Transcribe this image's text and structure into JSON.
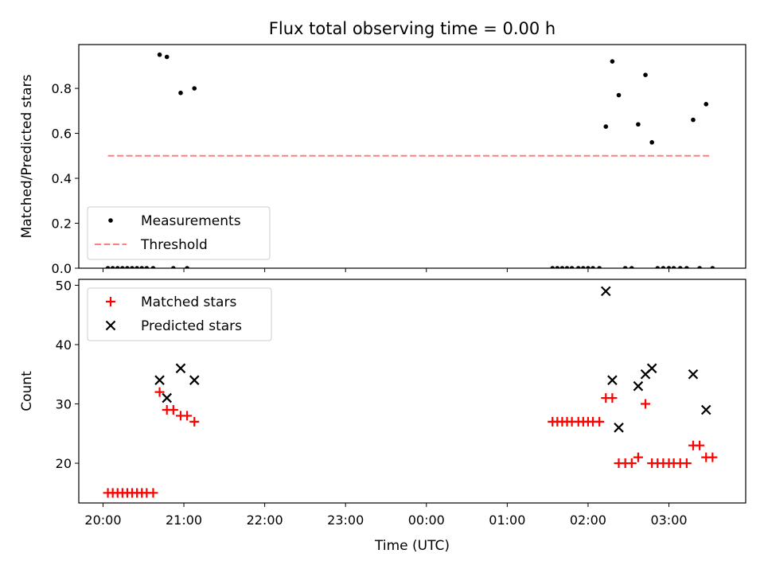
{
  "title": "Flux total observing time = 0.00 h",
  "chart_data": [
    {
      "type": "scatter",
      "ylabel": "Matched/Predicted stars",
      "xlim": [
        -0.3,
        7.95
      ],
      "ylim": [
        0,
        0.995
      ],
      "yticks": [
        0.0,
        0.2,
        0.4,
        0.6,
        0.8
      ],
      "ytick_labels": [
        "0.0",
        "0.2",
        "0.4",
        "0.6",
        "0.8"
      ],
      "legend": {
        "placement": "lower-left",
        "entries": [
          {
            "label": "Measurements",
            "marker": "dot",
            "color": "#000000"
          },
          {
            "label": "Threshold",
            "marker": "dashed-line",
            "color": "#ff7f7f"
          }
        ]
      },
      "threshold": {
        "y": 0.5,
        "x_range": [
          0.06,
          7.52
        ],
        "color": "#ff7f7f"
      },
      "series": [
        {
          "name": "Measurements",
          "color": "#000000",
          "points": [
            [
              0.06,
              0
            ],
            [
              0.12,
              0
            ],
            [
              0.18,
              0
            ],
            [
              0.24,
              0
            ],
            [
              0.3,
              0
            ],
            [
              0.36,
              0
            ],
            [
              0.42,
              0
            ],
            [
              0.48,
              0
            ],
            [
              0.54,
              0
            ],
            [
              0.62,
              0
            ],
            [
              0.7,
              0.95
            ],
            [
              0.79,
              0.94
            ],
            [
              0.87,
              0
            ],
            [
              0.96,
              0.78
            ],
            [
              1.04,
              0
            ],
            [
              1.13,
              0.8
            ],
            [
              5.56,
              0
            ],
            [
              5.62,
              0
            ],
            [
              5.68,
              0
            ],
            [
              5.74,
              0
            ],
            [
              5.8,
              0
            ],
            [
              5.88,
              0
            ],
            [
              5.94,
              0
            ],
            [
              6.0,
              0
            ],
            [
              6.06,
              0
            ],
            [
              6.14,
              0
            ],
            [
              6.22,
              0.63
            ],
            [
              6.3,
              0.92
            ],
            [
              6.38,
              0.77
            ],
            [
              6.46,
              0
            ],
            [
              6.54,
              0
            ],
            [
              6.62,
              0.64
            ],
            [
              6.71,
              0.86
            ],
            [
              6.79,
              0.56
            ],
            [
              6.86,
              0
            ],
            [
              6.93,
              0
            ],
            [
              7.0,
              0
            ],
            [
              7.06,
              0
            ],
            [
              7.14,
              0
            ],
            [
              7.22,
              0
            ],
            [
              7.3,
              0.66
            ],
            [
              7.38,
              0
            ],
            [
              7.46,
              0.73
            ],
            [
              7.54,
              0
            ]
          ]
        }
      ]
    },
    {
      "type": "scatter",
      "xlabel": "Time (UTC)",
      "ylabel": "Count",
      "xlim": [
        -0.3,
        7.95
      ],
      "ylim": [
        13.3,
        51.0
      ],
      "yticks": [
        20,
        30,
        40,
        50
      ],
      "ytick_labels": [
        "20",
        "30",
        "40",
        "50"
      ],
      "xticks": [
        0,
        1,
        2,
        3,
        4,
        5,
        6,
        7
      ],
      "xtick_labels": [
        "20:00",
        "21:00",
        "22:00",
        "23:00",
        "00:00",
        "01:00",
        "02:00",
        "03:00"
      ],
      "legend": {
        "placement": "upper-left",
        "entries": [
          {
            "label": "Matched stars",
            "marker": "plus",
            "color": "#ff0000"
          },
          {
            "label": "Predicted stars",
            "marker": "x",
            "color": "#000000"
          }
        ]
      },
      "series": [
        {
          "name": "Matched stars",
          "color": "#ff0000",
          "points": [
            [
              0.06,
              15
            ],
            [
              0.12,
              15
            ],
            [
              0.18,
              15
            ],
            [
              0.24,
              15
            ],
            [
              0.3,
              15
            ],
            [
              0.36,
              15
            ],
            [
              0.42,
              15
            ],
            [
              0.48,
              15
            ],
            [
              0.54,
              15
            ],
            [
              0.62,
              15
            ],
            [
              0.7,
              32
            ],
            [
              0.79,
              29
            ],
            [
              0.87,
              29
            ],
            [
              0.96,
              28
            ],
            [
              1.04,
              28
            ],
            [
              1.13,
              27
            ],
            [
              5.56,
              27
            ],
            [
              5.62,
              27
            ],
            [
              5.68,
              27
            ],
            [
              5.74,
              27
            ],
            [
              5.8,
              27
            ],
            [
              5.88,
              27
            ],
            [
              5.94,
              27
            ],
            [
              6.0,
              27
            ],
            [
              6.06,
              27
            ],
            [
              6.14,
              27
            ],
            [
              6.22,
              31
            ],
            [
              6.3,
              31
            ],
            [
              6.38,
              20
            ],
            [
              6.46,
              20
            ],
            [
              6.54,
              20
            ],
            [
              6.62,
              21
            ],
            [
              6.71,
              30
            ],
            [
              6.79,
              20
            ],
            [
              6.86,
              20
            ],
            [
              6.93,
              20
            ],
            [
              7.0,
              20
            ],
            [
              7.06,
              20
            ],
            [
              7.14,
              20
            ],
            [
              7.22,
              20
            ],
            [
              7.3,
              23
            ],
            [
              7.38,
              23
            ],
            [
              7.46,
              21
            ],
            [
              7.54,
              21
            ]
          ]
        },
        {
          "name": "Predicted stars",
          "color": "#000000",
          "points": [
            [
              0.7,
              34
            ],
            [
              0.79,
              31
            ],
            [
              0.96,
              36
            ],
            [
              1.13,
              34
            ],
            [
              6.22,
              49
            ],
            [
              6.3,
              34
            ],
            [
              6.38,
              26
            ],
            [
              6.62,
              33
            ],
            [
              6.71,
              35
            ],
            [
              6.79,
              36
            ],
            [
              7.3,
              35
            ],
            [
              7.46,
              29
            ]
          ]
        }
      ]
    }
  ]
}
